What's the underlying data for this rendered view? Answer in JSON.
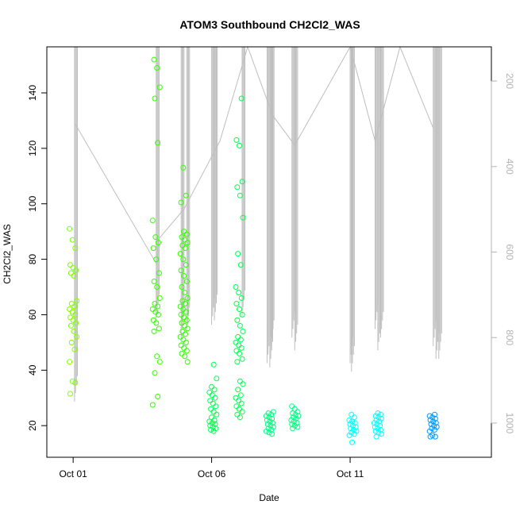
{
  "chart_data": {
    "type": "scatter",
    "title": "ATOM3 Southbound CH2Cl2_WAS",
    "xlabel": "Date",
    "ylabel": "CH2Cl2_WAS",
    "x_ticks": [
      {
        "label": "Oct 01",
        "day": 1
      },
      {
        "label": "Oct 06",
        "day": 6
      },
      {
        "label": "Oct 11",
        "day": 11
      }
    ],
    "xlim_day": [
      0.05,
      16.1
    ],
    "ylim": [
      8.6,
      156.6
    ],
    "y_ticks": [
      20,
      40,
      60,
      80,
      100,
      120,
      140
    ],
    "y2_ticks": [
      200,
      400,
      600,
      800,
      1000
    ],
    "y2lim": [
      120,
      1080
    ],
    "y2_reversed": true,
    "grid": false,
    "legend": "none",
    "point_colors": {
      "oct01": "#80ff00",
      "oct04": "#33ff00",
      "oct06": "#00ff4d",
      "oct08": "#00ff80",
      "oct11": "#00ffff",
      "oct15": "#0099ff"
    },
    "line_color": "#bebebe",
    "series": [
      {
        "day": 1.0,
        "color": "#80ff00",
        "values": [
          91,
          87,
          84,
          78,
          77,
          76,
          75,
          74,
          65,
          64,
          63,
          62,
          61,
          60,
          59,
          58,
          57,
          56,
          54,
          52,
          50,
          47.5,
          43,
          36,
          35.5,
          31.5
        ]
      },
      {
        "day": 4.0,
        "color": "#33ff00",
        "values": [
          152,
          149,
          142,
          138,
          122,
          94,
          88,
          86,
          84,
          80,
          75,
          72,
          70,
          66,
          64,
          63,
          62,
          61,
          60,
          58,
          57,
          55,
          54,
          45,
          43,
          39,
          30.5,
          27.5
        ]
      },
      {
        "day": 5.0,
        "color": "#33ff00",
        "values": [
          113,
          103,
          100.5,
          90,
          89,
          88,
          87,
          86,
          85,
          84,
          82,
          80,
          78,
          76,
          74,
          72,
          70,
          68,
          66,
          65,
          64,
          63,
          62,
          61,
          60,
          59,
          58,
          57,
          56,
          55,
          54,
          53,
          52,
          51,
          50,
          49,
          48,
          47,
          46,
          45,
          43
        ]
      },
      {
        "day": 6.05,
        "color": "#00ff4d",
        "values": [
          42,
          37,
          34,
          33,
          32,
          31,
          30,
          29,
          28,
          27,
          26,
          25,
          24,
          23,
          22,
          21.5,
          21,
          20.5,
          20,
          19.5,
          19,
          18.5,
          18
        ]
      },
      {
        "day": 7.0,
        "color": "#00ff4d",
        "values": [
          138,
          123,
          121,
          108,
          106,
          103,
          95,
          82,
          78,
          70,
          68,
          66,
          64,
          62,
          60,
          58,
          56,
          54,
          52,
          51,
          50,
          49,
          48,
          47,
          46,
          44,
          43,
          36,
          35,
          33,
          31,
          30,
          29,
          28,
          27,
          26,
          25,
          24,
          23
        ]
      },
      {
        "day": 8.1,
        "color": "#00ff80",
        "values": [
          25,
          24.5,
          24,
          23.5,
          23,
          22.5,
          22,
          21.5,
          21,
          20.5,
          20,
          19.5,
          19,
          18.5,
          18,
          17.5,
          17
        ]
      },
      {
        "day": 9.0,
        "color": "#00ff80",
        "values": [
          27,
          26,
          25,
          24.5,
          24,
          23.5,
          23,
          22.5,
          22,
          21.5,
          21,
          20.5,
          20,
          19.5,
          19
        ]
      },
      {
        "day": 11.1,
        "color": "#00ffff",
        "values": [
          24,
          23,
          22,
          21.5,
          21,
          20.5,
          20,
          19.5,
          19,
          18.5,
          18,
          17.5,
          17,
          16.5,
          14
        ]
      },
      {
        "day": 12.0,
        "color": "#00ffff",
        "values": [
          24.5,
          24,
          23.5,
          23,
          22.5,
          22,
          21.5,
          21,
          20.5,
          20,
          19.5,
          19,
          18.5,
          18,
          17.5,
          17,
          16
        ]
      },
      {
        "day": 14.0,
        "color": "#0099ff",
        "values": [
          24,
          23.5,
          23,
          22.5,
          22,
          21.5,
          21,
          20.5,
          20,
          19.5,
          19,
          18.5,
          18,
          16.5,
          16,
          16
        ]
      }
    ],
    "pressure_spikes_day": [
      1.05,
      4.0,
      4.9,
      5.1,
      6.0,
      6.1,
      7.1,
      8.0,
      8.1,
      8.15,
      8.9,
      9.0,
      11.0,
      11.05,
      11.9,
      12.0,
      12.1,
      14.0,
      14.1,
      14.2
    ],
    "pressure_path": [
      [
        1.07,
        300
      ],
      [
        4.03,
        630
      ],
      [
        4.08,
        570
      ],
      [
        5.0,
        500
      ],
      [
        6.3,
        340
      ],
      [
        7.3,
        120
      ],
      [
        8.2,
        280
      ],
      [
        9.0,
        350
      ],
      [
        11.0,
        120
      ],
      [
        11.9,
        340
      ],
      [
        12.8,
        120
      ],
      [
        14.0,
        310
      ]
    ]
  }
}
